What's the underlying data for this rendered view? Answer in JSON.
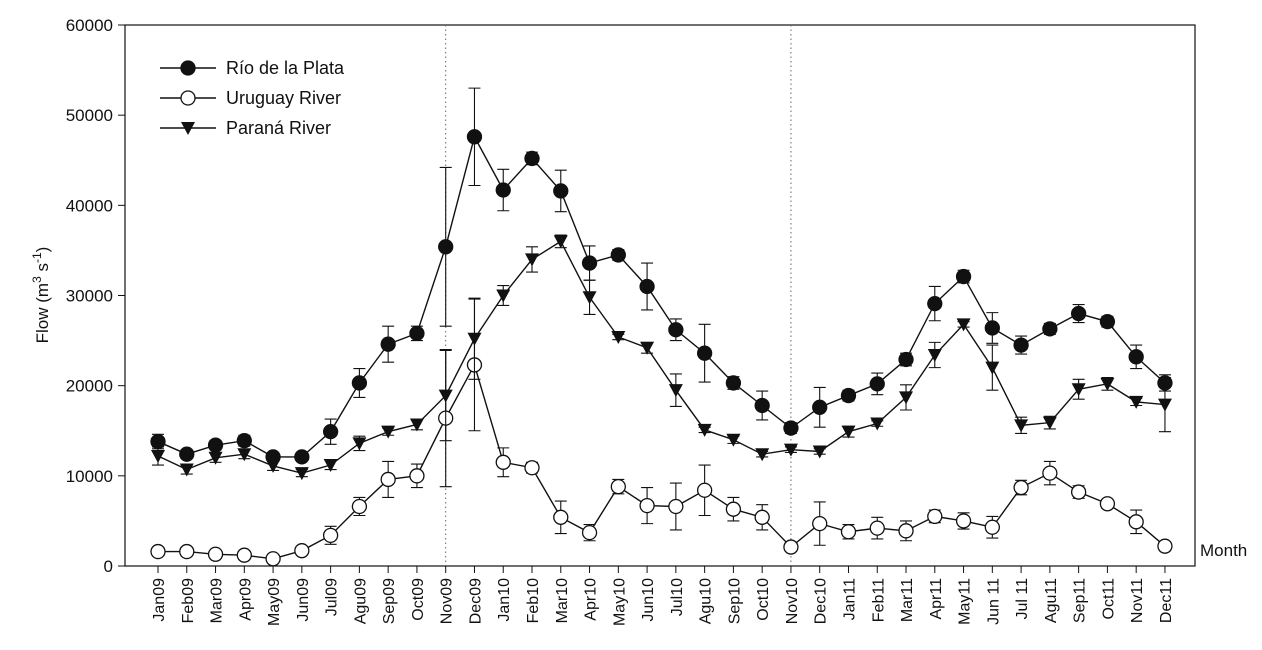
{
  "chart_data": {
    "type": "line",
    "xlabel": "Month",
    "ylabel_parts": [
      "Flow (m",
      "3",
      " s",
      "-1",
      ")"
    ],
    "categories": [
      "Jan09",
      "Feb09",
      "Mar09",
      "Apr09",
      "May09",
      "Jun09",
      "Jul09",
      "Agu09",
      "Sep09",
      "Oct09",
      "Nov09",
      "Dec09",
      "Jan10",
      "Feb10",
      "Mar10",
      "Apr10",
      "May10",
      "Jun10",
      "Jul10",
      "Agu10",
      "Sep10",
      "Oct10",
      "Nov10",
      "Dec10",
      "Jan11",
      "Feb11",
      "Mar11",
      "Apr11",
      "May11",
      "Jun 11",
      "Jul 11",
      "Agu11",
      "Sep11",
      "Oct11",
      "Nov11",
      "Dec11"
    ],
    "ylim": [
      0,
      60000
    ],
    "yticks": [
      0,
      10000,
      20000,
      30000,
      40000,
      50000,
      60000
    ],
    "reference_lines": [
      "Nov09",
      "Nov10"
    ],
    "legend": "upper left",
    "series": [
      {
        "name": "Río de la Plata",
        "color": "#111111",
        "marker": "circle-filled",
        "values": [
          13800,
          12400,
          13400,
          13900,
          12100,
          12100,
          14900,
          20300,
          24600,
          25800,
          35400,
          47600,
          41700,
          45200,
          41600,
          33600,
          34500,
          31000,
          26200,
          23600,
          20300,
          17800,
          15300,
          17600,
          18900,
          20200,
          22900,
          29100,
          32100,
          26400,
          24500,
          26300,
          28000,
          27100,
          23200,
          20300
        ],
        "errors": [
          800,
          400,
          500,
          600,
          500,
          400,
          1400,
          1600,
          2000,
          800,
          8800,
          5400,
          2300,
          700,
          2300,
          1900,
          600,
          2600,
          1200,
          3200,
          700,
          1600,
          600,
          2200,
          600,
          1200,
          700,
          1900,
          700,
          1700,
          1000,
          600,
          1000,
          600,
          1300,
          900
        ]
      },
      {
        "name": "Uruguay River",
        "color": "#111111",
        "marker": "circle-open",
        "values": [
          1600,
          1600,
          1300,
          1200,
          800,
          1700,
          3400,
          6600,
          9600,
          10000,
          16400,
          22300,
          11500,
          10900,
          5400,
          3700,
          8800,
          6700,
          6600,
          8400,
          6300,
          5400,
          2100,
          4700,
          3800,
          4200,
          3900,
          5500,
          5000,
          4300,
          8700,
          10300,
          8200,
          6900,
          4900,
          2200
        ],
        "errors": [
          400,
          300,
          300,
          300,
          300,
          400,
          1000,
          1000,
          2000,
          1300,
          7600,
          7300,
          1600,
          600,
          1800,
          900,
          800,
          2000,
          2600,
          2800,
          1300,
          1400,
          400,
          2400,
          800,
          1200,
          1100,
          700,
          900,
          1200,
          800,
          1300,
          700,
          500,
          1300,
          500
        ]
      },
      {
        "name": "Paraná River",
        "color": "#111111",
        "marker": "triangle-down",
        "values": [
          12200,
          10700,
          12000,
          12400,
          11100,
          10300,
          11200,
          13600,
          14900,
          15700,
          18900,
          25200,
          30000,
          34000,
          36000,
          29800,
          25400,
          24200,
          19500,
          15100,
          14000,
          12400,
          12900,
          12700,
          14900,
          15800,
          18700,
          23400,
          26800,
          22000,
          15600,
          15900,
          19600,
          20200,
          18200,
          17900
        ],
        "errors": [
          1000,
          500,
          500,
          500,
          500,
          400,
          500,
          800,
          400,
          600,
          5000,
          4500,
          1100,
          1400,
          700,
          1900,
          300,
          600,
          1800,
          300,
          400,
          300,
          300,
          300,
          600,
          300,
          1400,
          1400,
          300,
          2500,
          900,
          700,
          1100,
          700,
          400,
          3000
        ]
      }
    ]
  }
}
